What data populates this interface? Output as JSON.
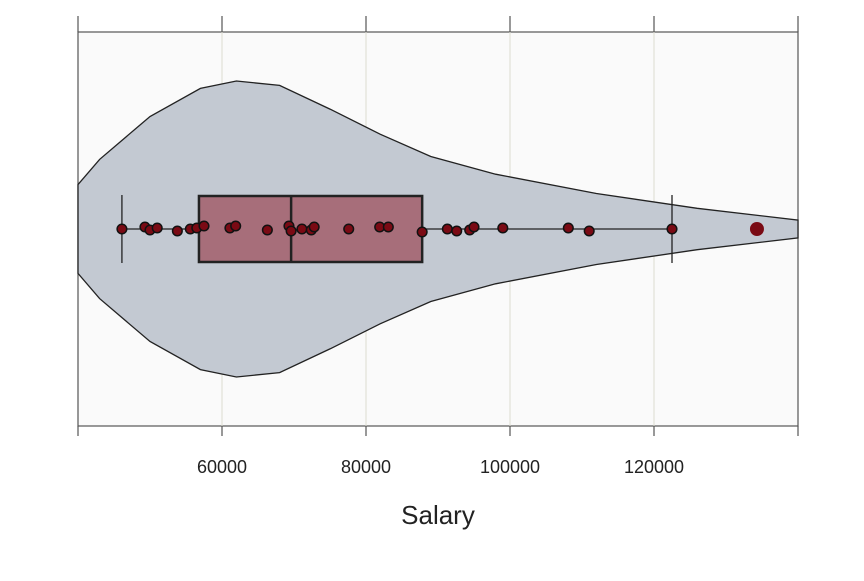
{
  "chart_data": {
    "type": "violin",
    "x_label": "Salary",
    "xlim": [
      40000,
      140000
    ],
    "xticks": [
      60000,
      80000,
      100000,
      120000
    ],
    "grid": true,
    "violin": {
      "x": [
        40000,
        43000,
        50000,
        57000,
        62000,
        68000,
        75000,
        82000,
        89000,
        98000,
        112000,
        126000,
        140000
      ],
      "density": [
        0.3,
        0.47,
        0.76,
        0.95,
        1.0,
        0.97,
        0.81,
        0.64,
        0.49,
        0.37,
        0.24,
        0.14,
        0.06
      ],
      "color": "#c3c9d2"
    },
    "box": {
      "whislo": 46100,
      "q1": 56800,
      "median": 69600,
      "q3": 87800,
      "whishi": 122500,
      "color": "#a25e6b"
    },
    "fliers": [
      134300
    ],
    "points": [
      46100,
      49300,
      50000,
      51000,
      53800,
      55600,
      56500,
      57500,
      61100,
      61900,
      66300,
      69300,
      69600,
      71100,
      72400,
      72800,
      77600,
      81900,
      83100,
      87800,
      91300,
      92600,
      94400,
      95000,
      99000,
      108100,
      111000,
      122500
    ],
    "point_color": "#7a0a14"
  }
}
